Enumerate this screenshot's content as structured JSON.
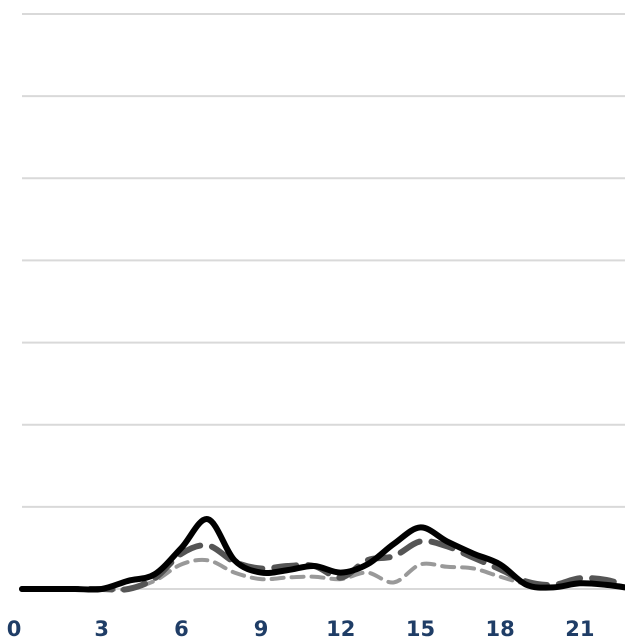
{
  "chart_data": {
    "type": "line",
    "title": "",
    "xlabel": "",
    "ylabel": "",
    "xlim": [
      0,
      22.7
    ],
    "ylim": [
      0,
      7
    ],
    "grid": true,
    "y_gridlines": [
      0,
      1,
      2,
      3,
      4,
      5,
      6,
      7
    ],
    "x_ticks": [
      0,
      3,
      6,
      9,
      12,
      15,
      18,
      21
    ],
    "x_tick_labels": [
      "0",
      "3",
      "6",
      "9",
      "12",
      "15",
      "18",
      "21"
    ],
    "x": [
      0,
      1,
      2,
      3,
      4,
      5,
      6,
      7,
      8,
      9,
      10,
      11,
      12,
      13,
      14,
      15,
      16,
      17,
      18,
      19,
      20,
      21,
      22,
      22.7
    ],
    "series": [
      {
        "style": "solid",
        "color": "#000000",
        "values": [
          0,
          0,
          0,
          0,
          0.1,
          0.18,
          0.5,
          0.85,
          0.35,
          0.2,
          0.23,
          0.28,
          0.2,
          0.3,
          0.55,
          0.75,
          0.58,
          0.43,
          0.3,
          0.05,
          0.02,
          0.07,
          0.05,
          0.02
        ]
      },
      {
        "style": "dashed",
        "color": "#555555",
        "values": [
          0,
          0,
          0,
          0,
          0,
          0.13,
          0.43,
          0.53,
          0.33,
          0.25,
          0.28,
          0.28,
          0.14,
          0.35,
          0.4,
          0.58,
          0.52,
          0.38,
          0.24,
          0.09,
          0.05,
          0.13,
          0.11,
          0.04
        ]
      },
      {
        "style": "dotted-dash",
        "color": "#999999",
        "values": [
          0,
          0,
          0,
          0,
          0,
          0.1,
          0.3,
          0.35,
          0.2,
          0.12,
          0.14,
          0.15,
          0.12,
          0.2,
          0.08,
          0.3,
          0.27,
          0.25,
          0.15,
          0.06,
          0.03,
          0.07,
          0.07,
          0.03
        ]
      }
    ]
  }
}
